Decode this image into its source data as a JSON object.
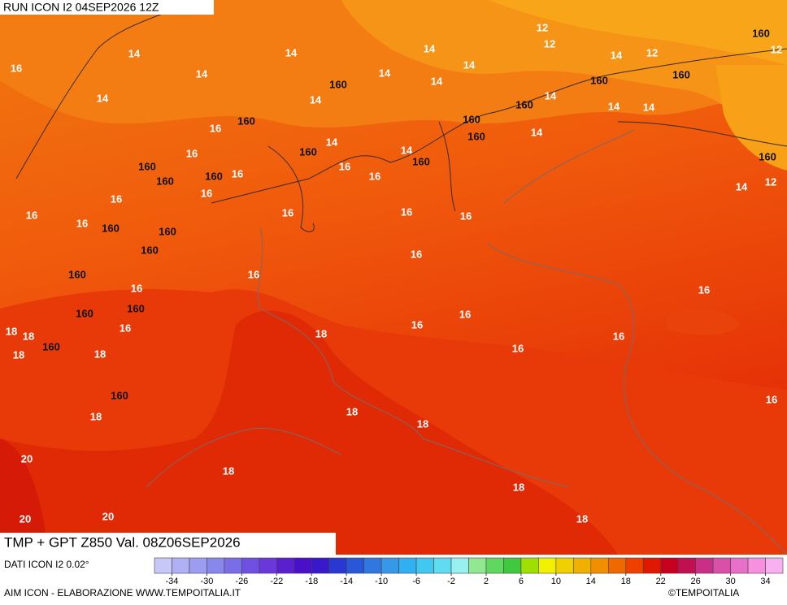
{
  "header": {
    "run": "RUN ICON I2 04SEP2026 12Z"
  },
  "map": {
    "contour_labels": [
      16,
      14,
      14,
      14,
      14,
      14,
      14,
      12,
      12,
      160,
      12,
      14,
      14,
      160,
      14,
      14,
      12,
      160,
      160,
      160,
      14,
      14,
      14,
      160,
      16,
      160,
      160,
      14,
      16,
      160,
      14,
      14,
      160,
      160,
      160,
      16,
      16,
      16,
      160,
      160,
      12,
      14,
      16,
      16,
      16,
      16,
      16,
      16,
      16,
      160,
      160,
      160,
      16,
      160,
      16,
      16,
      16,
      160,
      160,
      16,
      16,
      16,
      18,
      18,
      18,
      16,
      160,
      18,
      18,
      16,
      160,
      16,
      18,
      18,
      18,
      20,
      18,
      18,
      20,
      20,
      18
    ]
  },
  "footer": {
    "title": "TMP + GPT Z850 Val. 08Z06SEP2026",
    "source": "DATI ICON I2 0.02°",
    "credit": "AIM ICON - ELABORAZIONE WWW.TEMPOITALIA.IT",
    "copyright": "©TEMPOITALIA"
  },
  "colorbar": {
    "lim": [
      -36,
      36
    ],
    "ticks": [
      -34,
      -30,
      -26,
      -22,
      -18,
      -14,
      -10,
      -6,
      -2,
      2,
      6,
      10,
      14,
      18,
      22,
      26,
      30,
      34
    ],
    "colors": [
      "#c8c8f8",
      "#b0b0f4",
      "#9c9cf0",
      "#8888ec",
      "#7a6ee6",
      "#7050e0",
      "#6a38d8",
      "#5a20d0",
      "#4a10c8",
      "#3818c8",
      "#2838d0",
      "#2858d8",
      "#3078e0",
      "#3898e8",
      "#30b0f0",
      "#40c8f0",
      "#60dcf0",
      "#98f0f0",
      "#90e890",
      "#60d860",
      "#40c840",
      "#a0e000",
      "#f0f000",
      "#f0d000",
      "#f0b000",
      "#f09000",
      "#f06800",
      "#f04000",
      "#e01800",
      "#c80020",
      "#c01050",
      "#c83088",
      "#d850a8",
      "#e870c8",
      "#f890e0",
      "#f8b0f0"
    ]
  }
}
